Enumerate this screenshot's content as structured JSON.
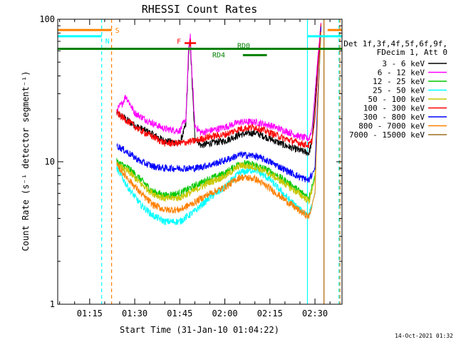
{
  "chart_data": {
    "type": "line",
    "title": "RHESSI Count Rates",
    "xlabel": "Start Time (31-Jan-10 01:04:22)",
    "ylabel": "Count Rate (s⁻¹ detector segment⁻¹)",
    "y_scale": "log",
    "ylim": [
      1,
      100
    ],
    "xlim": [
      "01:04:22",
      "02:39:00"
    ],
    "x_ticks": [
      "01:15",
      "01:30",
      "01:45",
      "02:00",
      "02:15",
      "02:30"
    ],
    "y_ticks": [
      "1",
      "10",
      "100"
    ],
    "legend_header": [
      "Det 1f,3f,4f,5f,6f,9f,",
      "FDecim 1, Att 0"
    ],
    "legend_position": "right",
    "series": [
      {
        "name": "3 - 6 keV",
        "color": "#000000",
        "x": [
          "01:24",
          "01:27",
          "01:30",
          "01:35",
          "01:40",
          "01:45",
          "01:47",
          "01:48",
          "01:48.5",
          "01:49",
          "01:50",
          "01:52",
          "01:55",
          "02:00",
          "02:05",
          "02:10",
          "02:15",
          "02:20",
          "02:25",
          "02:28",
          "02:29",
          "02:30",
          "02:31",
          "02:32"
        ],
        "values": [
          22,
          20,
          18,
          16,
          14,
          13.5,
          18,
          60,
          70,
          40,
          15,
          13,
          13.5,
          14,
          15.5,
          16,
          14.5,
          13,
          12,
          11.5,
          14,
          25,
          50,
          90
        ]
      },
      {
        "name": "6 - 12 keV",
        "color": "#ff00ff",
        "x": [
          "01:24",
          "01:26",
          "01:27",
          "01:30",
          "01:35",
          "01:40",
          "01:45",
          "01:47",
          "01:48",
          "01:48.5",
          "01:49",
          "01:50",
          "01:52",
          "01:55",
          "02:00",
          "02:05",
          "02:10",
          "02:15",
          "02:20",
          "02:25",
          "02:28",
          "02:29",
          "02:30",
          "02:31",
          "02:32"
        ],
        "values": [
          23,
          26,
          29,
          22,
          19,
          17,
          16.5,
          20,
          65,
          75,
          45,
          18,
          16,
          16.5,
          17.5,
          19,
          19,
          18,
          16.5,
          15,
          14.5,
          17,
          30,
          55,
          95
        ]
      },
      {
        "name": "12 - 25 keV",
        "color": "#00c800",
        "x": [
          "01:24",
          "01:28",
          "01:32",
          "01:36",
          "01:40",
          "01:45",
          "01:50",
          "01:55",
          "02:00",
          "02:05",
          "02:10",
          "02:15",
          "02:20",
          "02:25",
          "02:28",
          "02:30",
          "02:31",
          "02:32"
        ],
        "values": [
          10,
          9,
          7.5,
          6.2,
          5.8,
          6,
          6.8,
          7.6,
          8.3,
          9.8,
          9.5,
          8.6,
          7.4,
          6.2,
          5.6,
          8,
          30,
          90
        ]
      },
      {
        "name": "25 - 50 keV",
        "color": "#00ffff",
        "x": [
          "01:24",
          "01:28",
          "01:32",
          "01:36",
          "01:40",
          "01:45",
          "01:50",
          "01:55",
          "02:00",
          "02:05",
          "02:10",
          "02:15",
          "02:20",
          "02:25",
          "02:28",
          "02:30",
          "02:31",
          "02:32"
        ],
        "values": [
          9,
          6.5,
          5,
          4.2,
          3.8,
          3.8,
          4.5,
          5.6,
          6.6,
          8.4,
          8.8,
          7.5,
          5.8,
          4.6,
          4.2,
          6,
          25,
          80
        ]
      },
      {
        "name": "50 - 100 keV",
        "color": "#c8c800",
        "x": [
          "01:24",
          "01:28",
          "01:32",
          "01:36",
          "01:40",
          "01:45",
          "01:50",
          "01:55",
          "02:00",
          "02:05",
          "02:10",
          "02:15",
          "02:20",
          "02:25",
          "02:28",
          "02:30",
          "02:31",
          "02:32"
        ],
        "values": [
          9.5,
          8.5,
          7,
          6,
          5.5,
          5.6,
          6.3,
          7.2,
          7.9,
          9.4,
          9.2,
          8.2,
          7,
          5.9,
          5.3,
          7.5,
          28,
          85
        ]
      },
      {
        "name": "100 - 300 keV",
        "color": "#ff0000",
        "x": [
          "01:24",
          "01:28",
          "01:32",
          "01:36",
          "01:40",
          "01:45",
          "01:50",
          "01:55",
          "02:00",
          "02:05",
          "02:10",
          "02:15",
          "02:20",
          "02:25",
          "02:28",
          "02:29",
          "02:30",
          "02:31",
          "02:32"
        ],
        "values": [
          22,
          19,
          16.5,
          15,
          13.5,
          13.5,
          14,
          15,
          15.5,
          17,
          17.5,
          16,
          14.5,
          13.5,
          13,
          14,
          20,
          45,
          92
        ]
      },
      {
        "name": "300 - 800 keV",
        "color": "#0000ff",
        "x": [
          "01:24",
          "01:28",
          "01:32",
          "01:36",
          "01:40",
          "01:45",
          "01:50",
          "01:55",
          "02:00",
          "02:05",
          "02:10",
          "02:15",
          "02:20",
          "02:25",
          "02:28",
          "02:30",
          "02:31",
          "02:32"
        ],
        "values": [
          13,
          11.5,
          10,
          9.3,
          9,
          9,
          9,
          9.5,
          10.2,
          11.2,
          11,
          10,
          8.8,
          7.8,
          7.4,
          9,
          30,
          88
        ]
      },
      {
        "name": "800 - 7000 keV",
        "color": "#ff8000",
        "x": [
          "01:24",
          "01:28",
          "01:32",
          "01:36",
          "01:40",
          "01:45",
          "01:50",
          "01:55",
          "02:00",
          "02:05",
          "02:10",
          "02:15",
          "02:20",
          "02:25",
          "02:28",
          "02:30",
          "02:31",
          "02:32"
        ],
        "values": [
          9.5,
          7.5,
          6,
          5,
          4.6,
          4.6,
          5.2,
          6,
          6.6,
          7.8,
          7.6,
          6.5,
          5.4,
          4.5,
          4.1,
          6,
          26,
          82
        ]
      },
      {
        "name": "7000 - 15000 keV",
        "color": "#9b6e1e",
        "x": [
          "02:33",
          "02:33"
        ],
        "values": [
          1,
          100
        ]
      }
    ],
    "attenuator_bars": [
      {
        "label": "S",
        "color": "#ff8000",
        "x_end": "01:22.3",
        "x_start2": "02:34.2",
        "value": 84
      },
      {
        "label": "N",
        "color": "#00ffff",
        "x_end": "01:19",
        "x_start2": "02:27.5",
        "value": 76
      }
    ],
    "vertical_markers": [
      {
        "color": "#00ffff",
        "x": "01:19",
        "style": "dashed"
      },
      {
        "color": "#ff8000",
        "x": "01:22.3",
        "style": "dashed"
      },
      {
        "color": "#00ffff",
        "x": "02:27.5",
        "style": "solid"
      },
      {
        "color": "#ff8000",
        "x": "02:33",
        "style": "solid"
      },
      {
        "color": "#00ffff",
        "x": "02:38",
        "style": "dashed"
      },
      {
        "color": "#ff8000",
        "x": "02:38.3",
        "style": "dashed"
      }
    ],
    "flag_bars": [
      {
        "label": "RD0",
        "color": "#008000",
        "segments": [
          [
            "01:04:22",
            "02:39:00"
          ]
        ],
        "value": 62
      },
      {
        "label": "RD4",
        "color": "#008000",
        "segments": [
          [
            "02:06",
            "02:14"
          ]
        ],
        "value": 56
      }
    ],
    "flare_marker": {
      "label": "F",
      "color": "#ff0000",
      "x": "01:48.5",
      "value": 68
    }
  },
  "footer": {
    "timestamp": "14-Oct-2021 01:32"
  },
  "colors": {
    "background": "#ffffff",
    "axes": "#000000"
  }
}
